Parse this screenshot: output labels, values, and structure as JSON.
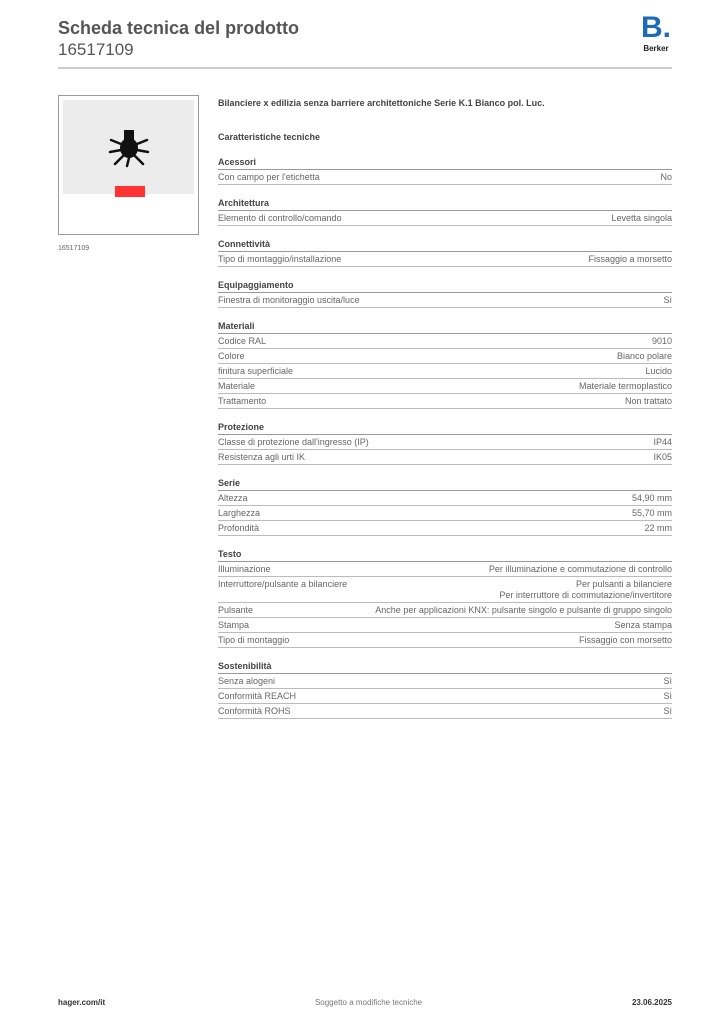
{
  "header": {
    "title": "Scheda tecnica del prodotto",
    "code": "16517109",
    "brand": "Berker",
    "brand_mark": "B."
  },
  "image": {
    "caption": "16517109"
  },
  "product_name": "Bilanciere x edilizia senza barriere architettoniche Serie K.1 Bianco pol. Luc.",
  "specs_title": "Caratteristiche tecniche",
  "sections": [
    {
      "title": "Acessori",
      "rows": [
        [
          "Con campo per l'etichetta",
          "No"
        ]
      ]
    },
    {
      "title": "Architettura",
      "rows": [
        [
          "Elemento di controllo/comando",
          "Levetta singola"
        ]
      ]
    },
    {
      "title": "Connettività",
      "rows": [
        [
          "Tipo di montaggio/installazione",
          "Fissaggio a morsetto"
        ]
      ]
    },
    {
      "title": "Equipaggiamento",
      "rows": [
        [
          "Finestra di monitoraggio uscita/luce",
          "Sì"
        ]
      ]
    },
    {
      "title": "Materiali",
      "rows": [
        [
          "Codice RAL",
          "9010"
        ],
        [
          "Colore",
          "Bianco polare"
        ],
        [
          "finitura superficiale",
          "Lucido"
        ],
        [
          "Materiale",
          "Materiale termoplastico"
        ],
        [
          "Trattamento",
          "Non trattato"
        ]
      ]
    },
    {
      "title": "Protezione",
      "rows": [
        [
          "Classe di protezione dall'ingresso (IP)",
          "IP44"
        ],
        [
          "Resistenza agli urti IK",
          "IK05"
        ]
      ]
    },
    {
      "title": "Serie",
      "rows": [
        [
          "Altezza",
          "54,90 mm"
        ],
        [
          "Larghezza",
          "55,70 mm"
        ],
        [
          "Profondità",
          "22 mm"
        ]
      ]
    },
    {
      "title": "Testo",
      "rows": [
        [
          "Illuminazione",
          "Per illuminazione e commutazione di controllo"
        ],
        [
          "Interruttore/pulsante a bilanciere",
          "Per pulsanti a bilanciere\nPer interruttore di commutazione/invertitore"
        ],
        [
          "Pulsante",
          "Anche per applicazioni KNX: pulsante singolo e pulsante di gruppo singolo"
        ],
        [
          "Stampa",
          "Senza stampa"
        ],
        [
          "Tipo di montaggio",
          "Fissaggio con morsetto"
        ]
      ]
    },
    {
      "title": "Sostenibilità",
      "rows": [
        [
          "Senza alogeni",
          "Sì"
        ],
        [
          "Conformità REACH",
          "Sì"
        ],
        [
          "Conformità ROHS",
          "Sì"
        ]
      ]
    }
  ],
  "footer": {
    "left": "hager.com/it",
    "center": "Soggetto a modifiche tecniche",
    "right": "23.06.2025"
  },
  "colors": {
    "brand": "#1b6bb5",
    "indicator": "#ff3333"
  }
}
